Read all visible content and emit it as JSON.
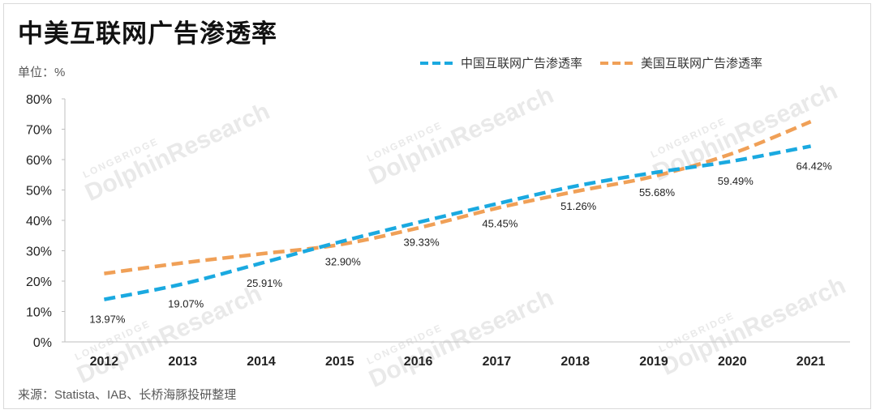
{
  "title": "中美互联网广告渗透率",
  "unit": "单位：%",
  "source": "来源：Statista、IAB、长桥海豚投研整理",
  "watermark": {
    "brand": "DolphinResearch",
    "sub": "LONGBRIDGE"
  },
  "colors": {
    "china": "#1aa9e0",
    "us": "#f0a057"
  },
  "chart_data": {
    "type": "line",
    "title": "中美互联网广告渗透率",
    "xlabel": "",
    "ylabel": "单位：%",
    "categories": [
      "2012",
      "2013",
      "2014",
      "2015",
      "2016",
      "2017",
      "2018",
      "2019",
      "2020",
      "2021"
    ],
    "ylim": [
      0,
      80
    ],
    "yticks": [
      0,
      10,
      20,
      30,
      40,
      50,
      60,
      70,
      80
    ],
    "ytick_labels": [
      "0%",
      "10%",
      "20%",
      "30%",
      "40%",
      "50%",
      "60%",
      "70%",
      "80%"
    ],
    "grid": false,
    "legend_position": "top-right",
    "series": [
      {
        "name": "中国互联网广告渗透率",
        "values": [
          13.97,
          19.07,
          25.91,
          32.9,
          39.33,
          45.45,
          51.26,
          55.68,
          59.49,
          64.42
        ],
        "labels": [
          "13.97%",
          "19.07%",
          "25.91%",
          "32.90%",
          "39.33%",
          "45.45%",
          "51.26%",
          "55.68%",
          "59.49%",
          "64.42%"
        ],
        "style": "dashed"
      },
      {
        "name": "美国互联网广告渗透率",
        "values": [
          22.5,
          26.0,
          29.0,
          32.0,
          37.5,
          44.0,
          49.5,
          54.5,
          62.0,
          72.5
        ],
        "style": "dashed"
      }
    ]
  }
}
